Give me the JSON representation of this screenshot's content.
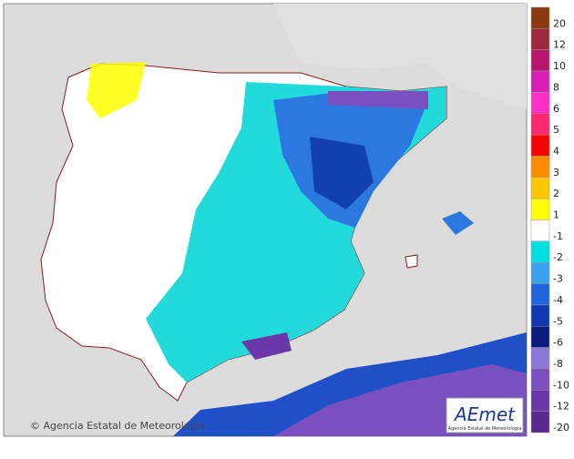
{
  "credit": "© Agencia Estatal de Meteorología",
  "logo": {
    "name": "AEmet",
    "subtitle": "Agencia Estatal de Meteorología"
  },
  "legend": [
    {
      "label": 20,
      "color": "#8b3a0f"
    },
    {
      "label": 12,
      "color": "#9c2a3c"
    },
    {
      "label": 10,
      "color": "#b8186c"
    },
    {
      "label": 8,
      "color": "#d81eb4"
    },
    {
      "label": 6,
      "color": "#ff30c8"
    },
    {
      "label": 5,
      "color": "#ff2870"
    },
    {
      "label": 4,
      "color": "#ff0000"
    },
    {
      "label": 3,
      "color": "#ff8c00"
    },
    {
      "label": 2,
      "color": "#ffc800"
    },
    {
      "label": 1,
      "color": "#ffff00"
    },
    {
      "label": -1,
      "color": "#ffffff"
    },
    {
      "label": -2,
      "color": "#00e0e0"
    },
    {
      "label": -3,
      "color": "#3aa0f0"
    },
    {
      "label": -4,
      "color": "#1e64dc"
    },
    {
      "label": -5,
      "color": "#1038b4"
    },
    {
      "label": -6,
      "color": "#0a1a80"
    },
    {
      "label": -8,
      "color": "#8c78d8"
    },
    {
      "label": -10,
      "color": "#7a50c0"
    },
    {
      "label": -12,
      "color": "#6a38a8"
    },
    {
      "label": -20,
      "color": "#5a2890"
    }
  ]
}
